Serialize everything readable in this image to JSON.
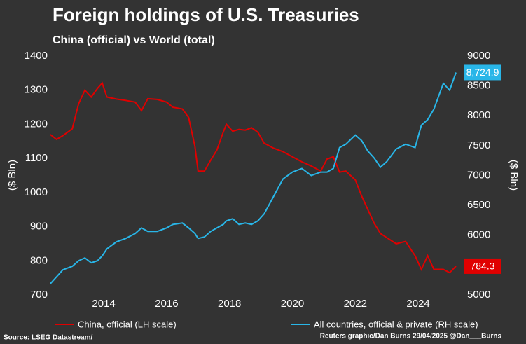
{
  "chart_data": {
    "type": "line",
    "title": "Foreign holdings of U.S. Treasuries",
    "subtitle": "China (official) vs World (total)",
    "y_label": "($ Bln)",
    "y2_label": "($ Bln)",
    "source": "Source: LSEG Datastream/",
    "credit": "Reuters graphic/Dan Burns 29/04/2025 @Dan___Burns",
    "grid": false,
    "legend": "bottom",
    "x": [
      2012.3,
      2012.5,
      2012.7,
      2013.0,
      2013.2,
      2013.4,
      2013.6,
      2013.8,
      2013.95,
      2014.1,
      2014.4,
      2014.7,
      2015.0,
      2015.2,
      2015.4,
      2015.7,
      2016.0,
      2016.2,
      2016.5,
      2016.7,
      2016.9,
      2017.0,
      2017.2,
      2017.4,
      2017.6,
      2017.8,
      2017.9,
      2018.1,
      2018.3,
      2018.5,
      2018.7,
      2018.9,
      2019.1,
      2019.4,
      2019.7,
      2020.0,
      2020.3,
      2020.6,
      2020.9,
      2021.1,
      2021.3,
      2021.5,
      2021.7,
      2022.0,
      2022.2,
      2022.4,
      2022.6,
      2022.8,
      2023.0,
      2023.3,
      2023.6,
      2023.9,
      2024.1,
      2024.3,
      2024.5,
      2024.8,
      2025.0,
      2025.2
    ],
    "xlim": [
      2012.26,
      2025.29
    ],
    "xticks": [
      2014,
      2016,
      2018,
      2020,
      2022,
      2024
    ],
    "ylim": [
      700,
      1400
    ],
    "yticks": [
      700,
      800,
      900,
      1000,
      1100,
      1200,
      1300,
      1400
    ],
    "y2lim": [
      5000,
      9000
    ],
    "y2ticks": [
      5000,
      5500,
      6000,
      6500,
      7000,
      7500,
      8000,
      8500,
      9000
    ],
    "series": [
      {
        "name": "China, official (LH scale)",
        "color": "#e00000",
        "values": [
          1170,
          1156,
          1167,
          1187,
          1260,
          1300,
          1280,
          1305,
          1321,
          1280,
          1274,
          1270,
          1265,
          1240,
          1275,
          1273,
          1265,
          1250,
          1245,
          1220,
          1135,
          1063,
          1063,
          1095,
          1125,
          1177,
          1200,
          1180,
          1185,
          1183,
          1190,
          1177,
          1145,
          1130,
          1120,
          1105,
          1090,
          1078,
          1063,
          1098,
          1105,
          1060,
          1063,
          1037,
          990,
          950,
          910,
          880,
          868,
          850,
          857,
          815,
          775,
          815,
          775,
          775,
          765,
          784.3
        ]
      },
      {
        "name": "All countries, official & private (RH scale)",
        "color": "#29b6e8",
        "axis": "y2",
        "values": [
          5187,
          5304,
          5421,
          5480,
          5573,
          5620,
          5538,
          5573,
          5655,
          5772,
          5889,
          5947,
          6029,
          6123,
          6064,
          6064,
          6123,
          6181,
          6205,
          6123,
          6029,
          5947,
          5971,
          6064,
          6123,
          6181,
          6240,
          6275,
          6181,
          6205,
          6181,
          6240,
          6357,
          6649,
          6942,
          7058,
          7117,
          7000,
          7058,
          7058,
          7117,
          7468,
          7526,
          7678,
          7585,
          7409,
          7292,
          7140,
          7234,
          7444,
          7526,
          7468,
          7842,
          7936,
          8111,
          8544,
          8427,
          8724.9
        ],
        "value_labels": [
          null,
          null,
          null,
          null,
          null,
          null,
          null,
          null,
          null,
          null,
          null,
          null,
          null,
          null,
          null,
          null,
          null,
          null,
          null,
          null,
          null,
          null,
          null,
          null,
          null,
          null,
          null,
          null,
          null,
          null,
          null,
          null,
          null,
          null,
          null,
          null,
          null,
          null,
          null,
          null,
          null,
          null,
          null,
          null,
          null,
          null,
          null,
          null,
          null,
          null,
          null,
          null,
          null,
          null,
          null,
          null,
          null,
          "8,724.9"
        ]
      }
    ]
  }
}
